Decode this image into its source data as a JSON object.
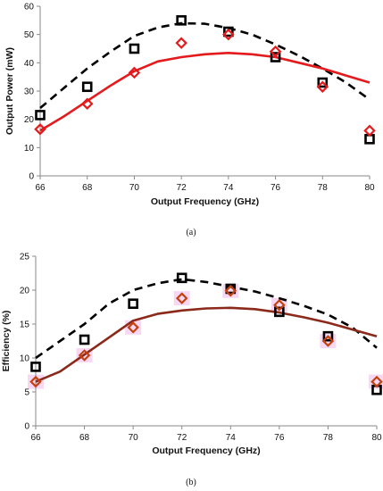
{
  "colors": {
    "measured_square": "#000000",
    "simulated_dashed": "#000000",
    "measured_diamond_a": "#e41a1c",
    "fit_line_a": "#e41a1c",
    "measured_diamond_b": "#c2410c",
    "fit_line_b": "#8b2a1a",
    "highlight_b": "#f4c6f0"
  },
  "chart_data": [
    {
      "type": "line",
      "caption": "(a)",
      "xlabel": "Output Frequency (GHz)",
      "ylabel": "Output Power (mW)",
      "xlim": [
        66,
        80
      ],
      "ylim": [
        0,
        60
      ],
      "xticks": [
        66,
        68,
        70,
        72,
        74,
        76,
        78,
        80
      ],
      "yticks": [
        0,
        10,
        20,
        30,
        40,
        50,
        60
      ],
      "grid": false,
      "legend": "none",
      "series": [
        {
          "style": "dashed-line",
          "color": "#000000",
          "x": [
            66,
            67,
            68,
            69,
            70,
            71,
            72,
            73,
            74,
            75,
            76,
            77,
            78,
            79,
            80
          ],
          "y": [
            24,
            31,
            38,
            44,
            49.5,
            52.5,
            54,
            53.8,
            52.3,
            50,
            46.5,
            42.5,
            38,
            33,
            27
          ]
        },
        {
          "style": "solid-line",
          "color": "#e41a1c",
          "x": [
            66,
            67,
            68,
            69,
            70,
            71,
            72,
            73,
            74,
            75,
            76,
            77,
            78,
            79,
            80
          ],
          "y": [
            16,
            21,
            26.5,
            32,
            37,
            40.5,
            42,
            43,
            43.5,
            43,
            42,
            40,
            38,
            35.5,
            33
          ]
        },
        {
          "style": "square-markers",
          "color": "#000000",
          "x": [
            66,
            68,
            70,
            72,
            74,
            76,
            78,
            80
          ],
          "y": [
            21.5,
            31.5,
            45,
            55,
            51,
            42,
            33,
            13
          ]
        },
        {
          "style": "diamond-markers",
          "color": "#e41a1c",
          "x": [
            66,
            68,
            70,
            72,
            74,
            76,
            78,
            80
          ],
          "y": [
            16.5,
            25.5,
            36.5,
            47,
            50,
            44,
            31.5,
            16
          ]
        }
      ]
    },
    {
      "type": "line",
      "caption": "(b)",
      "xlabel": "Output Frequency (GHz)",
      "ylabel": "Efficiency (%)",
      "xlim": [
        66,
        80
      ],
      "ylim": [
        0,
        25
      ],
      "xticks": [
        66,
        68,
        70,
        72,
        74,
        76,
        78,
        80
      ],
      "yticks": [
        0,
        5,
        10,
        15,
        20,
        25
      ],
      "grid": false,
      "legend": "none",
      "series": [
        {
          "style": "dashed-line",
          "color": "#000000",
          "x": [
            66,
            67,
            68,
            69,
            70,
            71,
            72,
            73,
            74,
            75,
            76,
            77,
            78,
            79,
            80
          ],
          "y": [
            10,
            12.5,
            15,
            18,
            20,
            21,
            21.6,
            21.2,
            20.5,
            19.8,
            18.8,
            17.7,
            16.4,
            14.5,
            11.5
          ]
        },
        {
          "style": "solid-line",
          "color": "#8b2a1a",
          "x": [
            66,
            67,
            68,
            69,
            70,
            71,
            72,
            73,
            74,
            75,
            76,
            77,
            78,
            79,
            80
          ],
          "y": [
            6.5,
            8,
            10.5,
            13,
            15.5,
            16.5,
            17,
            17.3,
            17.4,
            17.2,
            16.7,
            16,
            15.2,
            14.2,
            13.2
          ]
        },
        {
          "style": "square-markers",
          "color": "#000000",
          "x": [
            66,
            68,
            70,
            72,
            74,
            76,
            78,
            80
          ],
          "y": [
            8.7,
            12.7,
            18,
            21.8,
            20.2,
            16.8,
            13.2,
            5.3
          ]
        },
        {
          "style": "diamond-markers",
          "color": "#c2410c",
          "x": [
            66,
            68,
            70,
            72,
            74,
            76,
            78,
            80
          ],
          "y": [
            6.5,
            10.4,
            14.5,
            18.8,
            19.9,
            17.8,
            12.5,
            6.5
          ]
        }
      ]
    }
  ]
}
